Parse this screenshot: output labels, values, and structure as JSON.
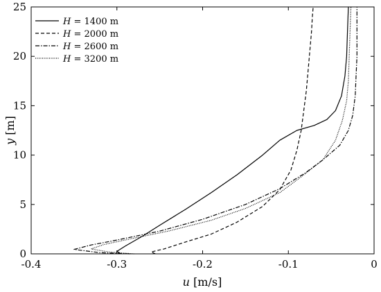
{
  "chart_data": {
    "type": "line",
    "xlabel": {
      "var": "u",
      "unit": "[m/s]"
    },
    "ylabel": {
      "var": "y",
      "unit": "[m]"
    },
    "xlim": [
      -0.4,
      0
    ],
    "ylim": [
      0,
      25
    ],
    "xticks": [
      "-0.4",
      "-0.3",
      "-0.2",
      "-0.1",
      "0"
    ],
    "yticks": [
      "0",
      "5",
      "10",
      "15",
      "20",
      "25"
    ],
    "grid": false,
    "legend_position": "top-left",
    "series": [
      {
        "name": "H = 1400 m",
        "legend_var": "H",
        "legend_rest": " = 1400 m",
        "style": "solid",
        "points": [
          [
            -0.295,
            0
          ],
          [
            -0.3,
            0.25
          ],
          [
            -0.29,
            0.8
          ],
          [
            -0.27,
            1.8
          ],
          [
            -0.25,
            2.9
          ],
          [
            -0.22,
            4.5
          ],
          [
            -0.19,
            6.2
          ],
          [
            -0.16,
            8.0
          ],
          [
            -0.13,
            10.0
          ],
          [
            -0.11,
            11.5
          ],
          [
            -0.09,
            12.5
          ],
          [
            -0.07,
            13.0
          ],
          [
            -0.055,
            13.6
          ],
          [
            -0.045,
            14.5
          ],
          [
            -0.038,
            16.0
          ],
          [
            -0.034,
            18.0
          ],
          [
            -0.032,
            20.0
          ],
          [
            -0.031,
            22.5
          ],
          [
            -0.03,
            25.0
          ]
        ]
      },
      {
        "name": "H = 2000 m",
        "legend_var": "H",
        "legend_rest": " = 2000 m",
        "style": "dashed",
        "points": [
          [
            -0.255,
            0
          ],
          [
            -0.26,
            0.2
          ],
          [
            -0.245,
            0.5
          ],
          [
            -0.22,
            1.2
          ],
          [
            -0.19,
            2.0
          ],
          [
            -0.16,
            3.2
          ],
          [
            -0.13,
            4.8
          ],
          [
            -0.11,
            6.5
          ],
          [
            -0.097,
            8.5
          ],
          [
            -0.09,
            10.5
          ],
          [
            -0.085,
            12.5
          ],
          [
            -0.082,
            14.5
          ],
          [
            -0.079,
            16.5
          ],
          [
            -0.077,
            18.5
          ],
          [
            -0.075,
            20.5
          ],
          [
            -0.073,
            22.5
          ],
          [
            -0.072,
            24.0
          ],
          [
            -0.071,
            25.0
          ]
        ]
      },
      {
        "name": "H = 2600 m",
        "legend_var": "H",
        "legend_rest": " = 2600 m",
        "style": "dashdot",
        "points": [
          [
            -0.285,
            0
          ],
          [
            -0.32,
            0.12
          ],
          [
            -0.35,
            0.45
          ],
          [
            -0.33,
            0.9
          ],
          [
            -0.3,
            1.4
          ],
          [
            -0.25,
            2.3
          ],
          [
            -0.2,
            3.5
          ],
          [
            -0.15,
            5.0
          ],
          [
            -0.11,
            6.6
          ],
          [
            -0.08,
            8.2
          ],
          [
            -0.06,
            9.5
          ],
          [
            -0.04,
            11.0
          ],
          [
            -0.03,
            12.5
          ],
          [
            -0.025,
            14.0
          ],
          [
            -0.022,
            16.0
          ],
          [
            -0.021,
            18.0
          ],
          [
            -0.02,
            20.0
          ],
          [
            -0.02,
            22.5
          ],
          [
            -0.02,
            25.0
          ]
        ]
      },
      {
        "name": "H = 3200 m",
        "legend_var": "H",
        "legend_rest": " = 3200 m",
        "style": "dotted",
        "points": [
          [
            -0.28,
            0
          ],
          [
            -0.31,
            0.2
          ],
          [
            -0.33,
            0.5
          ],
          [
            -0.315,
            0.95
          ],
          [
            -0.285,
            1.5
          ],
          [
            -0.24,
            2.3
          ],
          [
            -0.19,
            3.4
          ],
          [
            -0.15,
            4.6
          ],
          [
            -0.11,
            6.2
          ],
          [
            -0.085,
            7.8
          ],
          [
            -0.06,
            9.5
          ],
          [
            -0.045,
            11.5
          ],
          [
            -0.037,
            13.5
          ],
          [
            -0.032,
            15.5
          ],
          [
            -0.03,
            17.5
          ],
          [
            -0.029,
            20.0
          ],
          [
            -0.028,
            22.5
          ],
          [
            -0.027,
            25.0
          ]
        ]
      }
    ]
  }
}
